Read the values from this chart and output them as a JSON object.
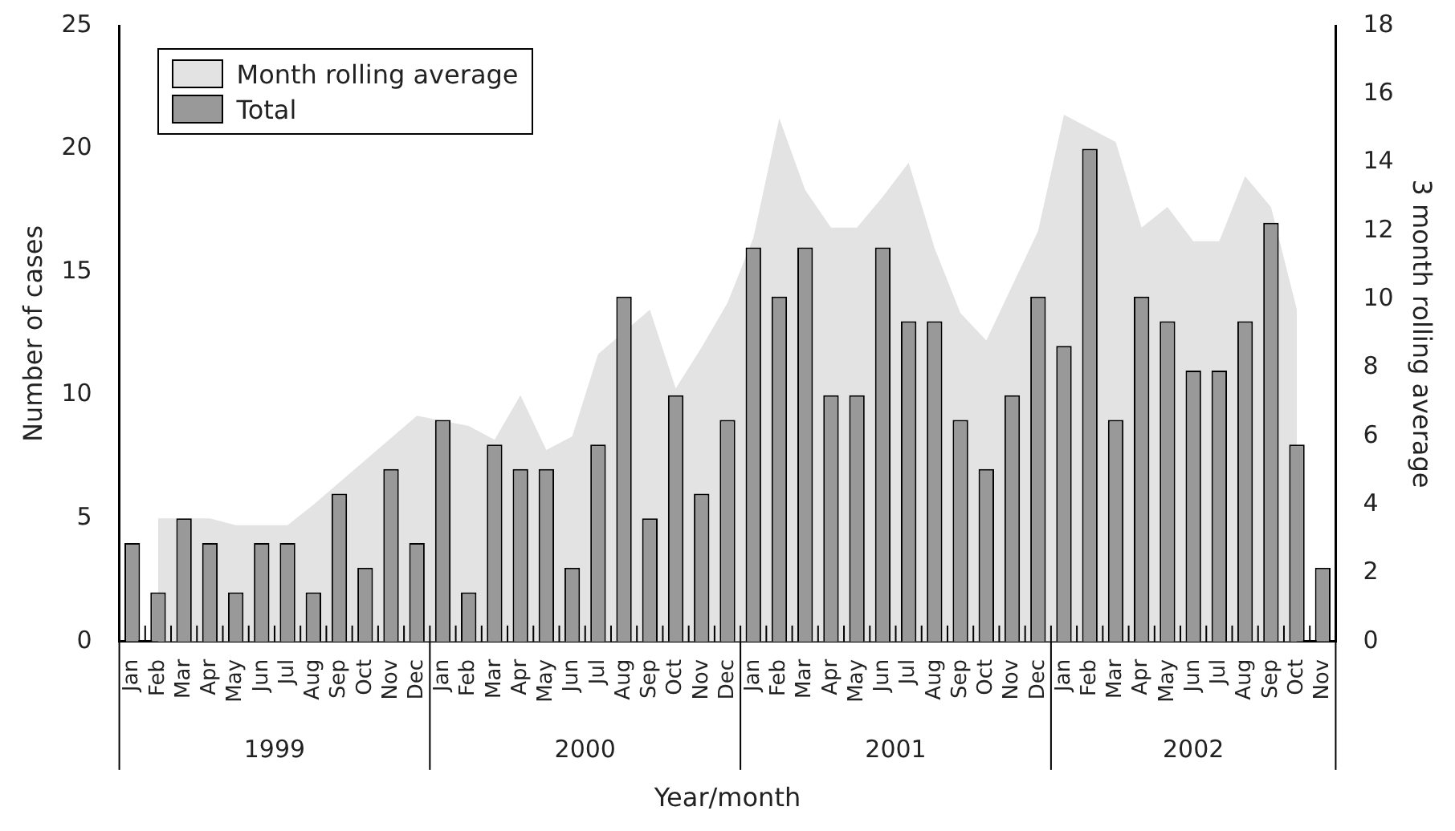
{
  "chart_data": {
    "type": "bar",
    "xlabel": "Year/month",
    "ylabel": "Number of cases",
    "y2label": "3 month rolling average",
    "categories": [
      "Jan",
      "Feb",
      "Mar",
      "Apr",
      "May",
      "Jun",
      "Jul",
      "Aug",
      "Sep",
      "Oct",
      "Nov",
      "Dec",
      "Jan",
      "Feb",
      "Mar",
      "Apr",
      "May",
      "Jun",
      "Jul",
      "Aug",
      "Sep",
      "Oct",
      "Nov",
      "Dec",
      "Jan",
      "Feb",
      "Mar",
      "Apr",
      "May",
      "Jun",
      "Jul",
      "Aug",
      "Sep",
      "Oct",
      "Nov",
      "Dec",
      "Jan",
      "Feb",
      "Mar",
      "Apr",
      "May",
      "Jun",
      "Jul",
      "Aug",
      "Sep",
      "Oct",
      "Nov"
    ],
    "series": [
      {
        "name": "Month rolling average",
        "type": "area",
        "axis": "y2",
        "color": "#e3e3e3",
        "values": [
          null,
          3.6,
          3.6,
          3.6,
          3.4,
          3.4,
          3.4,
          4.0,
          null,
          5.3,
          null,
          6.6,
          null,
          6.3,
          5.9,
          7.2,
          5.6,
          6.0,
          8.4,
          null,
          9.7,
          7.4,
          8.6,
          9.9,
          11.8,
          15.3,
          13.2,
          12.1,
          12.1,
          13.0,
          14.0,
          11.5,
          9.6,
          8.8,
          10.4,
          12.0,
          15.4,
          null,
          14.6,
          12.1,
          12.7,
          11.7,
          11.7,
          13.6,
          12.7,
          9.7,
          null
        ]
      },
      {
        "name": "Total",
        "color": "#999999",
        "values": [
          4,
          2,
          5,
          4,
          2,
          4,
          4,
          2,
          6,
          3,
          7,
          4,
          9,
          2,
          8,
          7,
          7,
          3,
          8,
          14,
          5,
          10,
          6,
          9,
          16,
          14,
          16,
          10,
          10,
          16,
          13,
          13,
          9,
          7,
          10,
          14,
          12,
          20,
          9,
          14,
          13,
          11,
          11,
          13,
          17,
          8,
          3
        ]
      }
    ],
    "ylim": [
      0,
      25
    ],
    "yticks": [
      0,
      5,
      10,
      15,
      20,
      25
    ],
    "y2lim": [
      0,
      18
    ],
    "y2ticks": [
      0,
      2,
      4,
      6,
      8,
      10,
      12,
      14,
      16,
      18
    ],
    "annotations": [
      "1999",
      "2000",
      "2001",
      "2002"
    ],
    "grid": false,
    "legend": "top left"
  }
}
